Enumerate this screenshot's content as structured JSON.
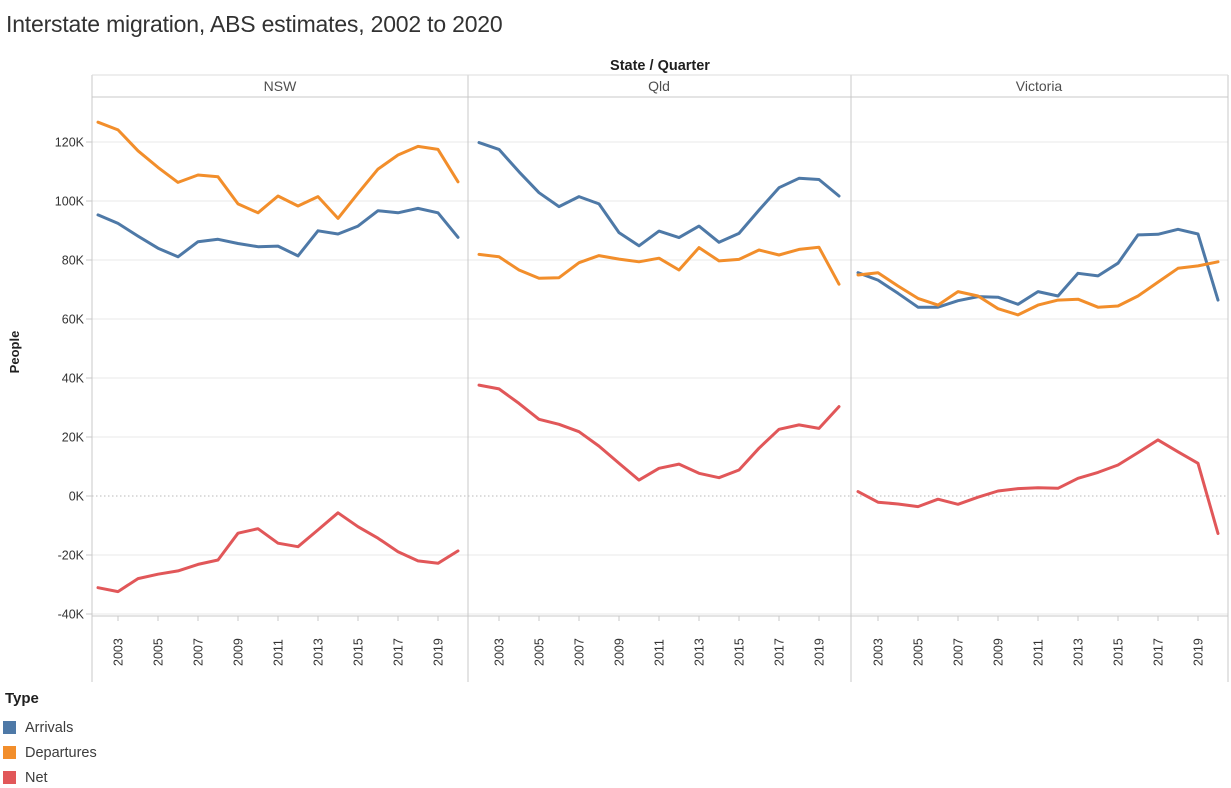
{
  "header": {
    "label": "State / Quarter"
  },
  "axes": {
    "y_title": "People",
    "y_ticks": [
      {
        "label": "120K",
        "value": 120
      },
      {
        "label": "100K",
        "value": 100
      },
      {
        "label": "80K",
        "value": 80
      },
      {
        "label": "60K",
        "value": 60
      },
      {
        "label": "40K",
        "value": 40
      },
      {
        "label": "20K",
        "value": 20
      },
      {
        "label": "0K",
        "value": 0
      },
      {
        "label": "-20K",
        "value": -20
      },
      {
        "label": "-40K",
        "value": -40
      }
    ],
    "x_tick_years": [
      2003,
      2005,
      2007,
      2009,
      2011,
      2013,
      2015,
      2017,
      2019
    ]
  },
  "legend": {
    "title": "Type",
    "position": "bottom-left",
    "items": [
      {
        "label": "Arrivals",
        "color": "#4e79a7"
      },
      {
        "label": "Departures",
        "color": "#f28e2b"
      },
      {
        "label": "Net",
        "color": "#e15759"
      }
    ]
  },
  "chart_data": {
    "type": "line",
    "title": "Interstate migration, ABS estimates, 2002 to 2020",
    "column_dimension": "State / Quarter",
    "ylabel": "People",
    "y_unit": "thousands of people",
    "ylim": [
      -45,
      135
    ],
    "grid": "horizontal, dotted line at zero",
    "x": [
      2002,
      2003,
      2004,
      2005,
      2006,
      2007,
      2008,
      2009,
      2010,
      2011,
      2012,
      2013,
      2014,
      2015,
      2016,
      2017,
      2018,
      2019,
      2020
    ],
    "panels": [
      {
        "state": "NSW",
        "series": [
          {
            "name": "Arrivals",
            "values": [
              95.3,
              92.4,
              88.1,
              84.0,
              81.1,
              86.2,
              87.0,
              85.6,
              84.5,
              84.7,
              81.4,
              89.9,
              88.8,
              91.5,
              96.7,
              96.0,
              97.5,
              96.0,
              87.7
            ]
          },
          {
            "name": "Departures",
            "values": [
              126.7,
              124.1,
              117.0,
              111.4,
              106.3,
              108.8,
              108.2,
              99.0,
              96.0,
              101.7,
              98.3,
              101.5,
              94.1,
              102.6,
              110.8,
              115.6,
              118.5,
              117.5,
              106.5
            ]
          },
          {
            "name": "Net",
            "values": [
              -31.1,
              -32.4,
              -28.0,
              -26.5,
              -25.4,
              -23.2,
              -21.7,
              -12.6,
              -11.1,
              -16.0,
              -17.2,
              -11.5,
              -5.7,
              -10.4,
              -14.3,
              -18.9,
              -22.0,
              -22.8,
              -18.6
            ]
          }
        ]
      },
      {
        "state": "Qld",
        "series": [
          {
            "name": "Arrivals",
            "values": [
              119.8,
              117.5,
              109.9,
              102.8,
              98.1,
              101.5,
              99.0,
              89.3,
              84.8,
              89.8,
              87.6,
              91.5,
              86.0,
              89.0,
              96.9,
              104.5,
              107.7,
              107.3,
              101.7
            ]
          },
          {
            "name": "Departures",
            "values": [
              81.9,
              81.1,
              76.6,
              73.8,
              74.0,
              79.1,
              81.5,
              80.3,
              79.4,
              80.6,
              76.6,
              84.2,
              79.7,
              80.2,
              83.4,
              81.7,
              83.6,
              84.3,
              71.8
            ]
          },
          {
            "name": "Net",
            "values": [
              37.6,
              36.3,
              31.4,
              26.0,
              24.3,
              21.8,
              16.9,
              11.1,
              5.4,
              9.4,
              10.8,
              7.7,
              6.2,
              8.8,
              16.2,
              22.6,
              24.1,
              22.9,
              30.3
            ]
          }
        ]
      },
      {
        "state": "Victoria",
        "series": [
          {
            "name": "Arrivals",
            "values": [
              75.7,
              73.2,
              68.7,
              64.0,
              64.0,
              66.2,
              67.6,
              67.4,
              65.0,
              69.3,
              67.8,
              75.5,
              74.6,
              78.9,
              88.5,
              88.7,
              90.4,
              88.8,
              66.4
            ]
          },
          {
            "name": "Departures",
            "values": [
              74.9,
              75.7,
              71.2,
              67.0,
              64.7,
              69.3,
              67.8,
              63.5,
              61.4,
              64.7,
              66.4,
              66.7,
              64.0,
              64.4,
              67.8,
              72.5,
              77.2,
              78.0,
              79.4
            ]
          },
          {
            "name": "Net",
            "values": [
              1.5,
              -2.1,
              -2.7,
              -3.6,
              -1.1,
              -2.8,
              -0.4,
              1.7,
              2.5,
              2.8,
              2.6,
              6.0,
              8.0,
              10.5,
              14.7,
              19.0,
              15.0,
              11.1,
              -12.7
            ]
          }
        ]
      }
    ]
  }
}
